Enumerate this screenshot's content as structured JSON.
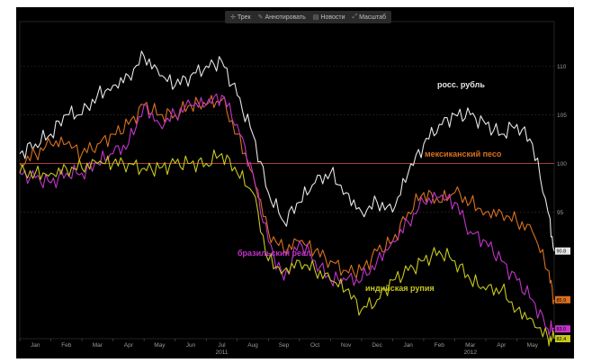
{
  "toolbar": {
    "items": [
      {
        "label": "Трек",
        "icon": "cross-icon"
      },
      {
        "label": "Аннотировать",
        "icon": "pen-icon"
      },
      {
        "label": "Новости",
        "icon": "news-icon"
      },
      {
        "label": "Масштаб",
        "icon": "zoom-icon"
      }
    ]
  },
  "chart_data": {
    "type": "line",
    "title": "",
    "xlabel": "",
    "ylabel": "",
    "x_ticks": [
      "Jan",
      "Feb",
      "Mar",
      "Apr",
      "May",
      "Jun",
      "Jul",
      "Aug",
      "Sep",
      "Oct",
      "Nov",
      "Dec",
      "Jan",
      "Feb",
      "Mar",
      "Apr",
      "May"
    ],
    "year_labels": [
      {
        "label": "2011",
        "at_month": 6
      },
      {
        "label": "2012",
        "at_month": 14
      }
    ],
    "y_ticks": [
      95,
      100,
      105,
      110
    ],
    "ylim": [
      82,
      114
    ],
    "xlim": [
      0,
      17.2
    ],
    "reference_line": 100,
    "grid": true,
    "series": [
      {
        "name": "росс. рубль",
        "color": "#e6e6e6",
        "end_tag": "90.8",
        "x": [
          0,
          0.5,
          1,
          1.5,
          2,
          2.5,
          3,
          3.5,
          4,
          4.5,
          5,
          5.5,
          6,
          6.5,
          7,
          7.5,
          8,
          8.5,
          9,
          9.5,
          10,
          10.5,
          11,
          11.5,
          12,
          12.5,
          13,
          13.5,
          14,
          14.5,
          15,
          15.5,
          16,
          16.5,
          17,
          17.2
        ],
        "values": [
          101,
          102,
          103,
          105,
          105,
          107,
          108,
          109,
          111,
          109,
          108,
          109,
          110,
          110.5,
          107,
          103,
          97,
          94,
          96,
          98,
          99,
          97,
          95,
          96,
          95,
          99,
          102,
          104,
          105,
          105,
          104,
          103,
          104,
          102,
          95,
          91
        ]
      },
      {
        "name": "мексиканский песо",
        "color": "#d9701e",
        "end_tag": "85.9",
        "x": [
          0,
          0.5,
          1,
          1.5,
          2,
          2.5,
          3,
          3.5,
          4,
          4.5,
          5,
          5.5,
          6,
          6.5,
          7,
          7.5,
          8,
          8.5,
          9,
          9.5,
          10,
          10.5,
          11,
          11.5,
          12,
          12.5,
          13,
          13.5,
          14,
          14.5,
          15,
          15.5,
          16,
          16.5,
          17,
          17.2
        ],
        "values": [
          100,
          101,
          102,
          102,
          101,
          102,
          103,
          104,
          106,
          105,
          105,
          106,
          106,
          106.5,
          103,
          99,
          93,
          91,
          92,
          91,
          90,
          89,
          89,
          91,
          92,
          95,
          97,
          96,
          97,
          96,
          95,
          95,
          94,
          93,
          89,
          86
        ]
      },
      {
        "name": "бразильский реал",
        "color": "#c234c9",
        "end_tag": "83.0",
        "x": [
          0,
          0.5,
          1,
          1.5,
          2,
          2.5,
          3,
          3.5,
          4,
          4.5,
          5,
          5.5,
          6,
          6.5,
          7,
          7.5,
          8,
          8.5,
          9,
          9.5,
          10,
          10.5,
          11,
          11.5,
          12,
          12.5,
          13,
          13.5,
          14,
          14.5,
          15,
          15.5,
          16,
          16.5,
          17,
          17.2
        ],
        "values": [
          99,
          98.5,
          98,
          99,
          99,
          100,
          101,
          102,
          106,
          104,
          105,
          106,
          106,
          107,
          104,
          99,
          92,
          88,
          92,
          90,
          88,
          88,
          88,
          90,
          92,
          94,
          96,
          96.5,
          96,
          93,
          92,
          90,
          88,
          86,
          83,
          83
        ]
      },
      {
        "name": "индийская рупия",
        "color": "#c8c81e",
        "end_tag": "82.4",
        "x": [
          0,
          0.5,
          1,
          1.5,
          2,
          2.5,
          3,
          3.5,
          4,
          4.5,
          5,
          5.5,
          6,
          6.5,
          7,
          7.5,
          8,
          8.5,
          9,
          9.5,
          10,
          10.5,
          11,
          11.5,
          12,
          12.5,
          13,
          13.5,
          14,
          14.5,
          15,
          15.5,
          16,
          16.5,
          17,
          17.2
        ],
        "values": [
          99,
          99,
          99,
          99.5,
          99.5,
          100,
          100,
          100,
          99.5,
          99.5,
          100,
          100,
          100,
          101,
          99,
          97,
          90,
          89,
          90,
          89,
          88,
          87,
          85,
          86,
          88,
          89,
          90,
          91,
          90,
          88,
          87,
          87,
          85,
          84,
          82,
          82
        ]
      }
    ],
    "annotations": [
      {
        "text": "росс. рубль",
        "series": 0
      },
      {
        "text": "мексиканский песо",
        "series": 1
      },
      {
        "text": "бразильский реал",
        "series": 2
      },
      {
        "text": "индийская рупия",
        "series": 3
      }
    ]
  }
}
